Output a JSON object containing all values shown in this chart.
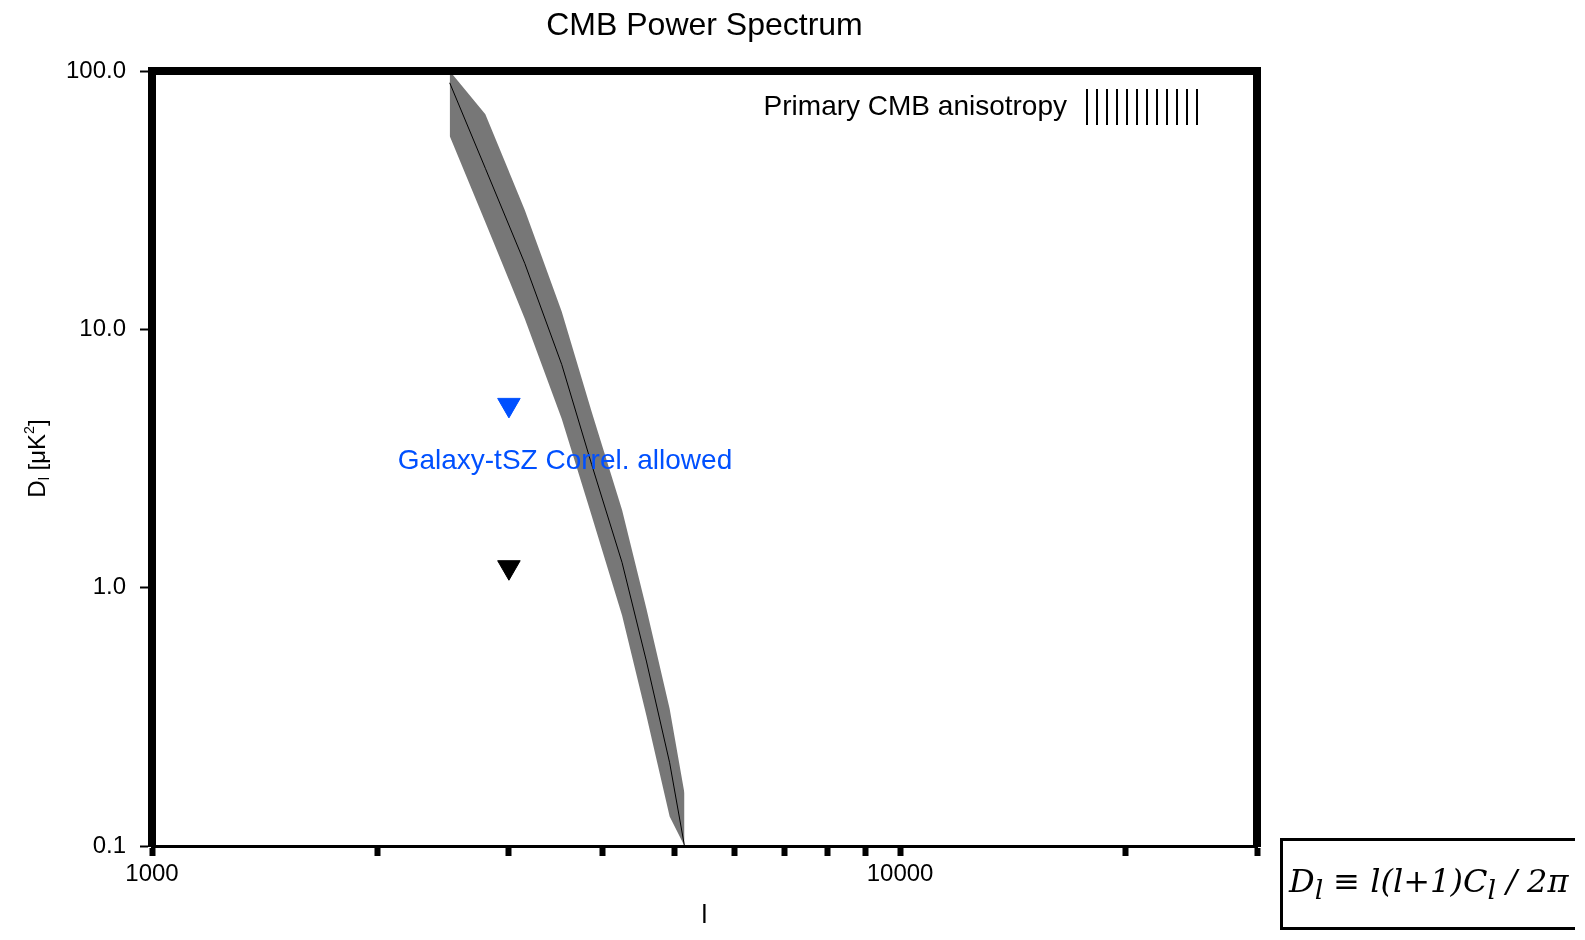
{
  "chart_data": {
    "type": "line",
    "title": "CMB Power Spectrum",
    "xlabel": "l",
    "ylabel": "D$_{l}$ [μK$^{2}$]",
    "log": "xy",
    "xlim": [
      1000,
      30000
    ],
    "ylim": [
      0.1,
      100
    ],
    "xticks": [
      1000,
      {
        "value": 2000,
        "label": null
      },
      {
        "value": 3000,
        "label": null
      },
      {
        "value": 4000,
        "label": null
      },
      {
        "value": 5000,
        "label": null
      },
      {
        "value": 6000,
        "label": null
      },
      {
        "value": 7000,
        "label": null
      },
      {
        "value": 8000,
        "label": null
      },
      {
        "value": 9000,
        "label": null
      },
      10000,
      {
        "value": 20000,
        "label": null
      },
      {
        "value": 30000,
        "label": null
      }
    ],
    "yticks": [
      {
        "value": 0.1,
        "label": "0.1"
      },
      {
        "value": 1,
        "label": "1.0"
      },
      {
        "value": 10,
        "label": "10.0"
      },
      {
        "value": 100,
        "label": "100.0"
      }
    ],
    "legend": "top right",
    "grid": false,
    "series": [
      {
        "name": "Primary CMB anisotropy",
        "color": "#000000",
        "x": [
          2500,
          2790,
          3150,
          3530,
          3870,
          4250,
          4580,
          4920,
          5150
        ],
        "values": [
          90,
          42,
          18,
          7.3,
          3.0,
          1.25,
          0.52,
          0.21,
          0.1
        ],
        "lower": [
          56,
          26,
          11,
          4.5,
          1.9,
          0.78,
          0.32,
          0.13,
          0.1
        ],
        "upper": [
          100,
          68,
          29,
          11.7,
          4.8,
          2.0,
          0.83,
          0.34,
          0.16
        ]
      },
      {
        "name": "Galaxy-tSZ Correl. allowed",
        "type": "scatter",
        "marker": "triangle",
        "color": "#0050ff",
        "x": [
          3000
        ],
        "values": [
          5.1
        ]
      },
      {
        "type": "scatter",
        "marker": "triangle",
        "color": "#000000",
        "x": [
          3000
        ],
        "values": [
          1.2
        ]
      }
    ],
    "annotations": [
      "D$_{l}$ ≡ l(l+1)C$_{l}$ / 2π"
    ]
  }
}
